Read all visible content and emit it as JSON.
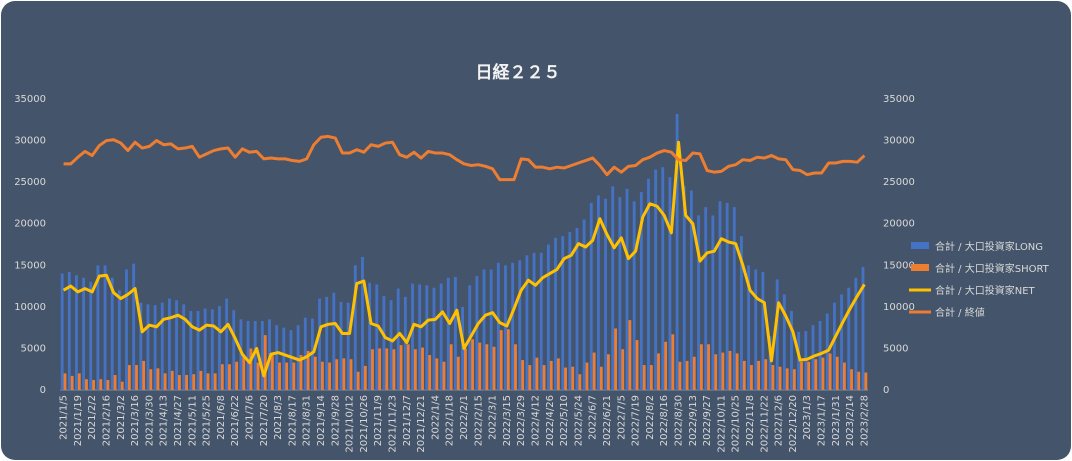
{
  "chart_data": {
    "type": "bar",
    "title": "日経２２５",
    "categories": [
      "2021/1/5",
      null,
      "2021/1/19",
      null,
      "2021/2/2",
      null,
      "2021/2/16",
      null,
      "2021/3/2",
      null,
      "2021/3/16",
      null,
      "2021/3/30",
      null,
      "2021/4/13",
      null,
      "2021/4/27",
      null,
      "2021/5/11",
      null,
      "2021/5/25",
      null,
      "2021/6/8",
      null,
      "2021/6/22",
      null,
      "2021/7/6",
      null,
      "2021/7/20",
      null,
      "2021/8/3",
      null,
      "2021/8/17",
      null,
      "2021/8/31",
      null,
      "2021/9/14",
      null,
      "2021/9/28",
      null,
      "2021/10/12",
      null,
      "2021/10/26",
      null,
      "2021/11/9",
      null,
      "2021/11/23",
      null,
      "2021/12/7",
      null,
      "2021/12/21",
      null,
      "2022/1/4",
      null,
      "2022/1/18",
      null,
      "2022/2/1",
      null,
      "2022/2/15",
      null,
      "2022/3/1",
      null,
      "2022/3/15",
      null,
      "2022/3/29",
      null,
      "2022/4/12",
      null,
      "2022/4/26",
      null,
      "2022/5/10",
      null,
      "2022/5/24",
      null,
      "2022/6/7",
      null,
      "2022/6/21",
      null,
      "2022/7/5",
      null,
      "2022/7/19",
      null,
      "2022/8/2",
      null,
      "2022/8/16",
      null,
      "2022/8/30",
      null,
      "2022/9/13",
      null,
      "2022/9/27",
      null,
      "2022/10/11",
      null,
      "2022/10/25",
      null,
      "2022/11/8",
      null,
      "2022/11/22",
      null,
      "2022/12/6",
      null,
      "2022/12/20",
      null,
      "2023/1/3",
      null,
      "2023/1/17",
      null,
      "2023/1/31",
      null,
      "2023/2/14",
      null,
      "2023/2/28"
    ],
    "series": [
      {
        "name": "合計 / 大口投資家LONG",
        "color": "#4472c4",
        "mark": "bar",
        "values": [
          14000,
          14200,
          13800,
          13500,
          13000,
          15000,
          15000,
          13500,
          12000,
          14500,
          15200,
          10500,
          10300,
          10200,
          10500,
          11000,
          10800,
          10300,
          9500,
          9500,
          9800,
          9700,
          10100,
          11000,
          9600,
          8500,
          8300,
          8300,
          8300,
          8500,
          7800,
          7500,
          7200,
          7800,
          8700,
          8600,
          11000,
          11200,
          11700,
          10600,
          10500,
          15000,
          16000,
          12900,
          12700,
          11300,
          10800,
          12200,
          11200,
          12800,
          12700,
          12600,
          12300,
          12800,
          13500,
          13600,
          10000,
          12600,
          13700,
          14500,
          14500,
          15300,
          15000,
          15300,
          15600,
          16200,
          16500,
          16500,
          17500,
          18300,
          18500,
          19000,
          19500,
          20500,
          22500,
          23400,
          23000,
          24500,
          23200,
          24200,
          22700,
          23800,
          25400,
          26500,
          26800,
          25600,
          33200,
          24500,
          24000,
          21000,
          22000,
          21000,
          22700,
          22500,
          22000,
          18500,
          15000,
          14500,
          14200,
          6500,
          13300,
          11500,
          9500,
          7000,
          7100,
          7800,
          8300,
          9200,
          10500,
          11500,
          12300,
          13500,
          14800
        ]
      },
      {
        "name": "合計 / 大口投資家SHORT",
        "color": "#ed7d31",
        "mark": "bar",
        "values": [
          2000,
          1700,
          2000,
          1300,
          1200,
          1300,
          1200,
          1800,
          1000,
          3000,
          3000,
          3500,
          2500,
          2600,
          2000,
          2300,
          1800,
          1800,
          1900,
          2300,
          2000,
          2000,
          3100,
          3100,
          3400,
          4200,
          5000,
          3300,
          6600,
          4200,
          3300,
          3300,
          3300,
          4200,
          4700,
          4000,
          3400,
          3300,
          3700,
          3800,
          3700,
          2200,
          2900,
          4900,
          5000,
          5000,
          4900,
          5400,
          5500,
          4900,
          5100,
          4200,
          3800,
          3400,
          5500,
          4000,
          5000,
          6100,
          5700,
          5500,
          5200,
          7200,
          7300,
          5500,
          3600,
          3000,
          3900,
          3000,
          3500,
          3800,
          2700,
          2800,
          1900,
          3300,
          4500,
          2800,
          4300,
          7400,
          4900,
          8400,
          6000,
          3000,
          3000,
          4400,
          5800,
          6700,
          3400,
          3500,
          4000,
          5500,
          5500,
          4300,
          4500,
          4700,
          4400,
          3500,
          3000,
          3500,
          3700,
          3000,
          2800,
          2600,
          2500,
          3400,
          3400,
          3700,
          3900,
          4400,
          4000,
          3300,
          2500,
          2200,
          2100
        ]
      },
      {
        "name": "合計 / 大口投資家NET",
        "color": "#ffc000",
        "mark": "line",
        "values": [
          12000,
          12500,
          11800,
          12200,
          11800,
          13700,
          13800,
          11700,
          11000,
          11500,
          12200,
          7000,
          7800,
          7600,
          8500,
          8700,
          9000,
          8500,
          7600,
          7200,
          7800,
          7700,
          7000,
          7900,
          6200,
          4300,
          3300,
          5000,
          1700,
          4300,
          4500,
          4200,
          3900,
          3600,
          4000,
          4600,
          7600,
          7900,
          8000,
          6800,
          6800,
          12800,
          13100,
          8000,
          7700,
          6300,
          5900,
          6800,
          5700,
          7900,
          7600,
          8400,
          8500,
          9400,
          8000,
          9600,
          5000,
          6500,
          8000,
          9000,
          9300,
          8100,
          7700,
          9800,
          12000,
          13200,
          12600,
          13500,
          14000,
          14500,
          15800,
          16200,
          17600,
          17200,
          18000,
          20600,
          18700,
          17100,
          18300,
          15800,
          16700,
          20800,
          22400,
          22100,
          21000,
          18900,
          29800,
          21000,
          20000,
          15500,
          16500,
          16700,
          18200,
          17800,
          17600,
          15000,
          12000,
          11000,
          10500,
          3500,
          10500,
          8900,
          7000,
          3600,
          3700,
          4100,
          4400,
          4800,
          6500,
          8200,
          9800,
          11300,
          12700
        ]
      },
      {
        "name": "合計 / 終値",
        "color": "#ed7d31",
        "mark": "line",
        "axis": "y2",
        "values": [
          27200,
          27200,
          28000,
          28700,
          28200,
          29400,
          30000,
          30100,
          29700,
          28800,
          29800,
          29100,
          29300,
          30000,
          29500,
          29600,
          29000,
          29100,
          29300,
          28000,
          28400,
          28800,
          29000,
          29100,
          28000,
          29000,
          28600,
          28700,
          27800,
          27900,
          27800,
          27800,
          27600,
          27500,
          27800,
          29500,
          30400,
          30500,
          30300,
          28500,
          28500,
          28900,
          28600,
          29500,
          29300,
          29700,
          29800,
          28300,
          28000,
          28600,
          27900,
          28700,
          28500,
          28500,
          28300,
          27700,
          27200,
          27000,
          27100,
          26900,
          26600,
          25300,
          25300,
          25300,
          27800,
          27700,
          26800,
          26800,
          26600,
          26800,
          26700,
          27000,
          27300,
          27600,
          27900,
          27000,
          25900,
          26800,
          26200,
          26900,
          27000,
          27700,
          28000,
          28500,
          28800,
          28600,
          27700,
          27600,
          28500,
          28400,
          26400,
          26200,
          26300,
          26900,
          27100,
          27700,
          27600,
          28000,
          27900,
          28200,
          27800,
          27700,
          26500,
          26400,
          25900,
          26100,
          26100,
          27300,
          27300,
          27500,
          27500,
          27400,
          28200
        ]
      }
    ],
    "ylim": [
      0,
      35000
    ],
    "yticks": [
      0,
      5000,
      10000,
      15000,
      20000,
      25000,
      30000,
      35000
    ],
    "y2lim": [
      0,
      35000
    ],
    "y2ticks": [
      0,
      5000,
      10000,
      15000,
      20000,
      25000,
      30000,
      35000
    ],
    "grid": false,
    "legend": "right"
  }
}
